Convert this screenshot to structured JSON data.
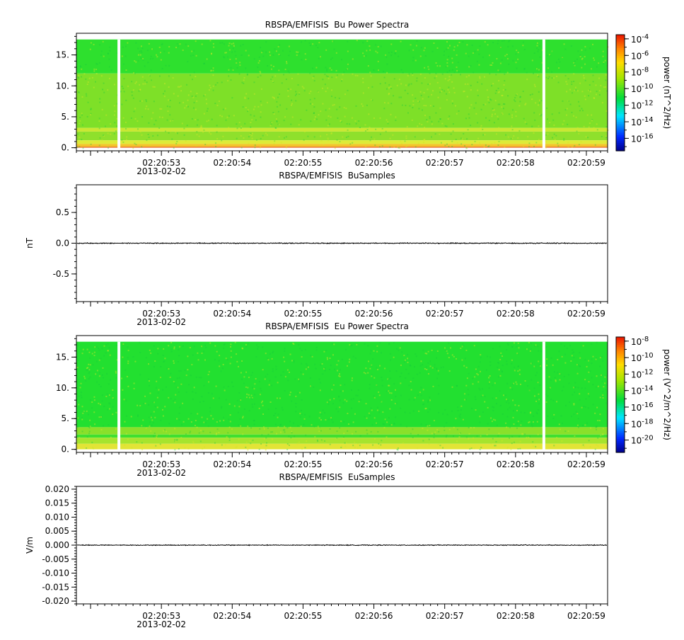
{
  "time_axis": {
    "date_label": "2013-02-02",
    "tick_labels": [
      "02:20:53",
      "02:20:54",
      "02:20:55",
      "02:20:56",
      "02:20:57",
      "02:20:58",
      "02:20:59"
    ],
    "range_seconds": [
      51.8,
      59.3
    ],
    "labeled_seconds": [
      53,
      54,
      55,
      56,
      57,
      58,
      59
    ]
  },
  "chart_data": [
    {
      "type": "heatmap",
      "title": "RBSPA/EMFISIS  Bu Power Spectra",
      "ylabel": "",
      "ylim": [
        -0.5,
        18.5
      ],
      "yticks": [
        0,
        5,
        10,
        15
      ],
      "ytick_labels": [
        "0.",
        "5.",
        "10.",
        "15."
      ],
      "data_top_kHz": 17.5,
      "gaps_seconds": [
        52.4,
        58.4
      ],
      "colorbar": {
        "label": "power (nT^2/Hz)",
        "log_range": [
          -17.5,
          -3.5
        ],
        "tick_exponents": [
          -16,
          -14,
          -12,
          -10,
          -8,
          -6,
          -4
        ],
        "tick_labels": [
          "10-16",
          "10-14",
          "10-12",
          "10-10",
          "10-8",
          "10-6",
          "10-4"
        ]
      },
      "bands": [
        {
          "from": 17.5,
          "to": 12.0,
          "color": "#2ee02e"
        },
        {
          "from": 12.0,
          "to": 3.2,
          "color": "#7ee028"
        },
        {
          "from": 3.2,
          "to": 2.6,
          "color": "#c9e832"
        },
        {
          "from": 2.6,
          "to": 1.2,
          "color": "#8fe02c"
        },
        {
          "from": 1.2,
          "to": 0.6,
          "color": "#ddeb38"
        },
        {
          "from": 0.6,
          "to": 0.15,
          "color": "#f3c42a"
        },
        {
          "from": 0.15,
          "to": 0.0,
          "color": "#e8631c"
        }
      ]
    },
    {
      "type": "line",
      "title": "RBSPA/EMFISIS  BuSamples",
      "ylabel": "nT",
      "ylim": [
        -0.95,
        0.95
      ],
      "yticks": [
        -0.5,
        0.0,
        0.5
      ],
      "ytick_labels": [
        "-0.5",
        "0.0",
        "0.5"
      ],
      "noise_amplitude": 0.006,
      "gaps_seconds": [
        52.4,
        58.4
      ]
    },
    {
      "type": "heatmap",
      "title": "RBSPA/EMFISIS  Eu Power Spectra",
      "ylabel": "",
      "ylim": [
        -0.5,
        18.5
      ],
      "yticks": [
        0,
        5,
        10,
        15
      ],
      "ytick_labels": [
        "0.",
        "5.",
        "10.",
        "15."
      ],
      "data_top_kHz": 17.5,
      "gaps_seconds": [
        52.4,
        58.4
      ],
      "colorbar": {
        "label": "power (V^2/m^2/Hz)",
        "log_range": [
          -21.5,
          -7.5
        ],
        "tick_exponents": [
          -20,
          -18,
          -16,
          -14,
          -12,
          -10,
          -8
        ],
        "tick_labels": [
          "10-20",
          "10-18",
          "10-16",
          "10-14",
          "10-12",
          "10-10",
          "10-8"
        ]
      },
      "bands": [
        {
          "from": 17.5,
          "to": 3.6,
          "color": "#22e030"
        },
        {
          "from": 3.6,
          "to": 2.4,
          "color": "#8ae02a"
        },
        {
          "from": 2.4,
          "to": 1.9,
          "color": "#3fe030"
        },
        {
          "from": 1.9,
          "to": 0.9,
          "color": "#a6e42e"
        },
        {
          "from": 0.9,
          "to": 0.0,
          "color": "#e2e436"
        }
      ]
    },
    {
      "type": "line",
      "title": "RBSPA/EMFISIS  EuSamples",
      "ylabel": "V/m",
      "ylim": [
        -0.021,
        0.021
      ],
      "yticks": [
        -0.02,
        -0.015,
        -0.01,
        -0.005,
        0.0,
        0.005,
        0.01,
        0.015,
        0.02
      ],
      "ytick_labels": [
        "-0.020",
        "-0.015",
        "-0.010",
        "-0.005",
        "0.000",
        "0.005",
        "0.010",
        "0.015",
        "0.020"
      ],
      "noise_amplitude": 0.00012,
      "gaps_seconds": [
        52.4,
        58.4
      ]
    }
  ]
}
